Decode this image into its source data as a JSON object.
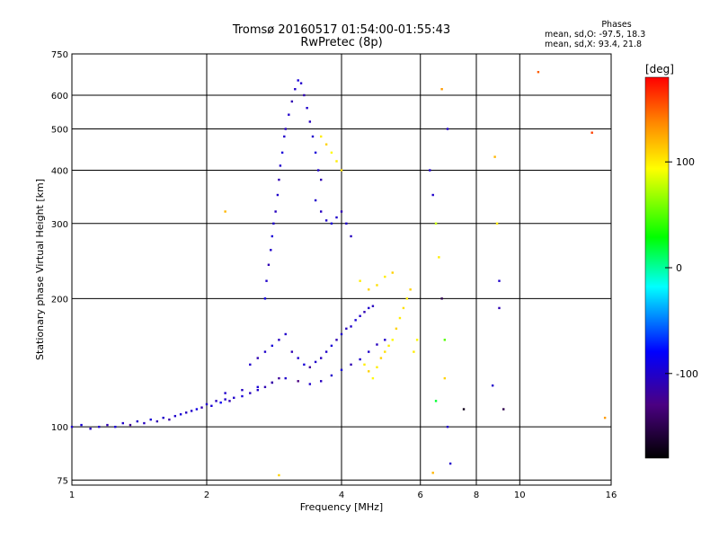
{
  "header": {
    "title_line1": "Tromsø 20160517 01:54:00-01:55:43",
    "title_line2": "RwPretec (8p)"
  },
  "phases_box": {
    "heading": "Phases",
    "line_o": "mean, sd,O: -97.5, 18.3",
    "line_x": "mean, sd,X:  93.4, 21.8"
  },
  "colorbar": {
    "label": "[deg]",
    "range": [
      -180,
      180
    ],
    "ticks": [
      {
        "value": 100,
        "label": "100"
      },
      {
        "value": 0,
        "label": "0"
      },
      {
        "value": -100,
        "label": "-100"
      }
    ]
  },
  "chart_data": {
    "type": "scatter",
    "xlabel": "Frequency [MHz]",
    "ylabel": "Stationary phase Virtual Height [km]",
    "xscale": "log",
    "yscale": "log",
    "xlim": [
      1,
      16
    ],
    "ylim": [
      73,
      750
    ],
    "xticks": [
      {
        "value": 1,
        "label": "1"
      },
      {
        "value": 2,
        "label": "2"
      },
      {
        "value": 4,
        "label": "4"
      },
      {
        "value": 6,
        "label": "6"
      },
      {
        "value": 8,
        "label": "8"
      },
      {
        "value": 10,
        "label": "10"
      },
      {
        "value": 16,
        "label": "16"
      }
    ],
    "yticks": [
      {
        "value": 75,
        "label": "75"
      },
      {
        "value": 100,
        "label": "100"
      },
      {
        "value": 200,
        "label": "200"
      },
      {
        "value": 300,
        "label": "300"
      },
      {
        "value": 400,
        "label": "400"
      },
      {
        "value": 500,
        "label": "500"
      },
      {
        "value": 600,
        "label": "600"
      },
      {
        "value": 750,
        "label": "750"
      }
    ],
    "grid": true,
    "color_dimension": "phase [deg]",
    "series": [
      {
        "role": "O-mode low trace",
        "points": [
          [
            1.0,
            100,
            -100
          ],
          [
            1.05,
            101,
            -95
          ],
          [
            1.1,
            99,
            -105
          ],
          [
            1.15,
            100,
            -100
          ],
          [
            1.2,
            101,
            -110
          ],
          [
            1.25,
            100,
            -95
          ],
          [
            1.3,
            102,
            -100
          ],
          [
            1.35,
            101,
            -120
          ],
          [
            1.4,
            103,
            -100
          ],
          [
            1.45,
            102,
            -105
          ],
          [
            1.5,
            104,
            -95
          ],
          [
            1.55,
            103,
            -110
          ],
          [
            1.6,
            105,
            -100
          ],
          [
            1.65,
            104,
            -115
          ],
          [
            1.7,
            106,
            -100
          ],
          [
            1.75,
            107,
            -95
          ],
          [
            1.8,
            108,
            -105
          ],
          [
            1.85,
            109,
            -100
          ],
          [
            1.9,
            110,
            -90
          ],
          [
            1.95,
            111,
            -110
          ],
          [
            2.0,
            113,
            -100
          ],
          [
            2.05,
            112,
            -95
          ],
          [
            2.1,
            115,
            -105
          ],
          [
            2.15,
            114,
            -85
          ],
          [
            2.2,
            116,
            -100
          ],
          [
            2.25,
            115,
            -110
          ],
          [
            2.3,
            117,
            -100
          ],
          [
            2.4,
            118,
            -95
          ],
          [
            2.5,
            120,
            -105
          ],
          [
            2.6,
            122,
            -100
          ],
          [
            2.7,
            124,
            -110
          ],
          [
            2.8,
            127,
            -100
          ],
          [
            2.9,
            130,
            -120
          ]
        ]
      },
      {
        "role": "O-mode trace 2.5-4 MHz",
        "points": [
          [
            2.5,
            140,
            -100
          ],
          [
            2.6,
            145,
            -110
          ],
          [
            2.7,
            150,
            -100
          ],
          [
            2.8,
            155,
            -95
          ],
          [
            2.9,
            160,
            -105
          ],
          [
            3.0,
            165,
            -100
          ],
          [
            3.1,
            150,
            -110
          ],
          [
            3.2,
            145,
            -100
          ],
          [
            3.3,
            140,
            -95
          ],
          [
            3.4,
            138,
            -120
          ],
          [
            3.5,
            142,
            -100
          ],
          [
            3.6,
            145,
            -105
          ],
          [
            3.7,
            150,
            -100
          ],
          [
            3.8,
            155,
            -95
          ],
          [
            3.9,
            160,
            -110
          ],
          [
            4.0,
            165,
            -100
          ],
          [
            4.1,
            170,
            -105
          ],
          [
            4.2,
            172,
            -100
          ],
          [
            4.3,
            178,
            -95
          ],
          [
            4.4,
            182,
            -100
          ],
          [
            4.5,
            186,
            -110
          ],
          [
            4.6,
            190,
            -100
          ],
          [
            4.7,
            192,
            -105
          ]
        ]
      },
      {
        "role": "O-mode lower band 2.2-4.5 MHz",
        "points": [
          [
            2.2,
            120,
            -100
          ],
          [
            2.4,
            122,
            -105
          ],
          [
            2.6,
            124,
            -95
          ],
          [
            2.8,
            127,
            -115
          ],
          [
            3.0,
            130,
            -100
          ],
          [
            3.2,
            128,
            -130
          ],
          [
            3.4,
            126,
            -100
          ],
          [
            3.6,
            128,
            -105
          ],
          [
            3.8,
            132,
            -100
          ],
          [
            4.0,
            136,
            -95
          ],
          [
            4.2,
            140,
            -110
          ],
          [
            4.4,
            144,
            -100
          ],
          [
            4.6,
            150,
            -100
          ],
          [
            4.8,
            156,
            -105
          ],
          [
            5.0,
            160,
            -100
          ]
        ]
      },
      {
        "role": "F-region column 2.7-3.6 MHz",
        "points": [
          [
            2.7,
            200,
            -90
          ],
          [
            2.72,
            220,
            -100
          ],
          [
            2.75,
            240,
            -110
          ],
          [
            2.78,
            260,
            -100
          ],
          [
            2.8,
            280,
            -95
          ],
          [
            2.82,
            300,
            -100
          ],
          [
            2.85,
            320,
            -105
          ],
          [
            2.88,
            350,
            -100
          ],
          [
            2.9,
            380,
            -110
          ],
          [
            2.92,
            410,
            -100
          ],
          [
            2.95,
            440,
            -95
          ],
          [
            2.98,
            480,
            -100
          ],
          [
            3.0,
            500,
            -105
          ],
          [
            3.05,
            540,
            -100
          ],
          [
            3.1,
            580,
            -110
          ],
          [
            3.15,
            620,
            -100
          ],
          [
            3.2,
            650,
            -95
          ],
          [
            3.25,
            640,
            -100
          ],
          [
            3.3,
            600,
            -110
          ],
          [
            3.35,
            560,
            -100
          ],
          [
            3.4,
            520,
            -105
          ],
          [
            3.45,
            480,
            -100
          ],
          [
            3.5,
            440,
            -95
          ],
          [
            3.55,
            400,
            -100
          ],
          [
            3.6,
            380,
            -110
          ]
        ]
      },
      {
        "role": "F-region trace 3.5-4.2 MHz",
        "points": [
          [
            3.5,
            340,
            -100
          ],
          [
            3.6,
            320,
            -105
          ],
          [
            3.7,
            305,
            -100
          ],
          [
            3.8,
            300,
            -95
          ],
          [
            3.9,
            310,
            -100
          ],
          [
            4.0,
            320,
            -110
          ],
          [
            4.1,
            300,
            -100
          ],
          [
            4.2,
            280,
            -105
          ]
        ]
      },
      {
        "role": "X-mode traces",
        "points": [
          [
            3.6,
            480,
            100
          ],
          [
            3.7,
            460,
            110
          ],
          [
            3.8,
            440,
            95
          ],
          [
            3.9,
            420,
            100
          ],
          [
            4.0,
            400,
            105
          ],
          [
            4.5,
            140,
            100
          ],
          [
            4.6,
            135,
            110
          ],
          [
            4.7,
            130,
            95
          ],
          [
            4.8,
            138,
            100
          ],
          [
            4.9,
            145,
            110
          ],
          [
            5.0,
            150,
            105
          ],
          [
            5.1,
            155,
            100
          ],
          [
            5.2,
            160,
            95
          ],
          [
            5.3,
            170,
            110
          ],
          [
            5.4,
            180,
            100
          ],
          [
            5.5,
            190,
            105
          ],
          [
            5.6,
            200,
            100
          ],
          [
            5.7,
            210,
            110
          ],
          [
            5.8,
            150,
            100
          ],
          [
            5.9,
            160,
            95
          ],
          [
            4.4,
            220,
            100
          ],
          [
            4.6,
            210,
            110
          ],
          [
            4.8,
            215,
            105
          ],
          [
            5.0,
            225,
            100
          ],
          [
            5.2,
            230,
            110
          ]
        ]
      },
      {
        "role": "Scattered isolated points",
        "points": [
          [
            6.3,
            400,
            -100
          ],
          [
            6.4,
            350,
            -100
          ],
          [
            6.5,
            300,
            80
          ],
          [
            6.6,
            250,
            100
          ],
          [
            6.7,
            200,
            -150
          ],
          [
            6.8,
            160,
            50
          ],
          [
            6.7,
            620,
            130
          ],
          [
            6.9,
            500,
            -100
          ],
          [
            6.9,
            100,
            -100
          ],
          [
            7.0,
            82,
            -100
          ],
          [
            6.4,
            78,
            120
          ],
          [
            8.8,
            430,
            120
          ],
          [
            8.9,
            300,
            100
          ],
          [
            9.0,
            190,
            -110
          ],
          [
            8.7,
            125,
            -100
          ],
          [
            9.2,
            110,
            -150
          ],
          [
            11.0,
            680,
            150
          ],
          [
            14.5,
            490,
            160
          ],
          [
            15.5,
            105,
            130
          ],
          [
            6.5,
            115,
            20
          ],
          [
            6.8,
            130,
            110
          ],
          [
            7.5,
            110,
            -170
          ],
          [
            9.0,
            220,
            -100
          ],
          [
            2.2,
            320,
            120
          ],
          [
            2.9,
            77,
            110
          ]
        ]
      }
    ]
  },
  "colors": {
    "grid": "#000000",
    "axis": "#000000",
    "background": "#ffffff"
  }
}
